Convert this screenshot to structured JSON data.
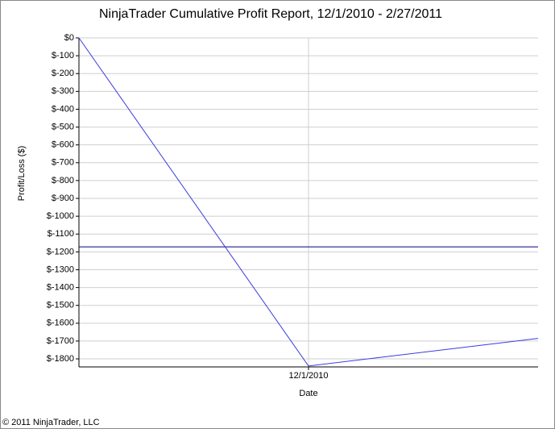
{
  "chart_data": {
    "type": "line",
    "title": "NinjaTrader Cumulative Profit Report, 12/1/2010 - 2/27/2011",
    "x_label": "Date",
    "y_label": "Profit/Loss ($)",
    "footer": "© 2011 NinjaTrader, LLC",
    "categories": [
      null,
      "12/1/2010",
      null
    ],
    "series": [
      {
        "name": "Cumulative Profit",
        "color": "#3a3ae0",
        "values": [
          0,
          -1840,
          -1685
        ]
      }
    ],
    "reference_line": {
      "value": -1172,
      "color": "#000080"
    },
    "ylim": [
      -1845,
      0
    ],
    "yticks": [
      {
        "value": 0,
        "label": "$0"
      },
      {
        "value": -100,
        "label": "$-100"
      },
      {
        "value": -200,
        "label": "$-200"
      },
      {
        "value": -300,
        "label": "$-300"
      },
      {
        "value": -400,
        "label": "$-400"
      },
      {
        "value": -500,
        "label": "$-500"
      },
      {
        "value": -600,
        "label": "$-600"
      },
      {
        "value": -700,
        "label": "$-700"
      },
      {
        "value": -800,
        "label": "$-800"
      },
      {
        "value": -900,
        "label": "$-900"
      },
      {
        "value": -1000,
        "label": "$-1000"
      },
      {
        "value": -1100,
        "label": "$-1100"
      },
      {
        "value": -1200,
        "label": "$-1200"
      },
      {
        "value": -1300,
        "label": "$-1300"
      },
      {
        "value": -1400,
        "label": "$-1400"
      },
      {
        "value": -1500,
        "label": "$-1500"
      },
      {
        "value": -1600,
        "label": "$-1600"
      },
      {
        "value": -1700,
        "label": "$-1700"
      },
      {
        "value": -1800,
        "label": "$-1800"
      }
    ],
    "grid": true
  }
}
